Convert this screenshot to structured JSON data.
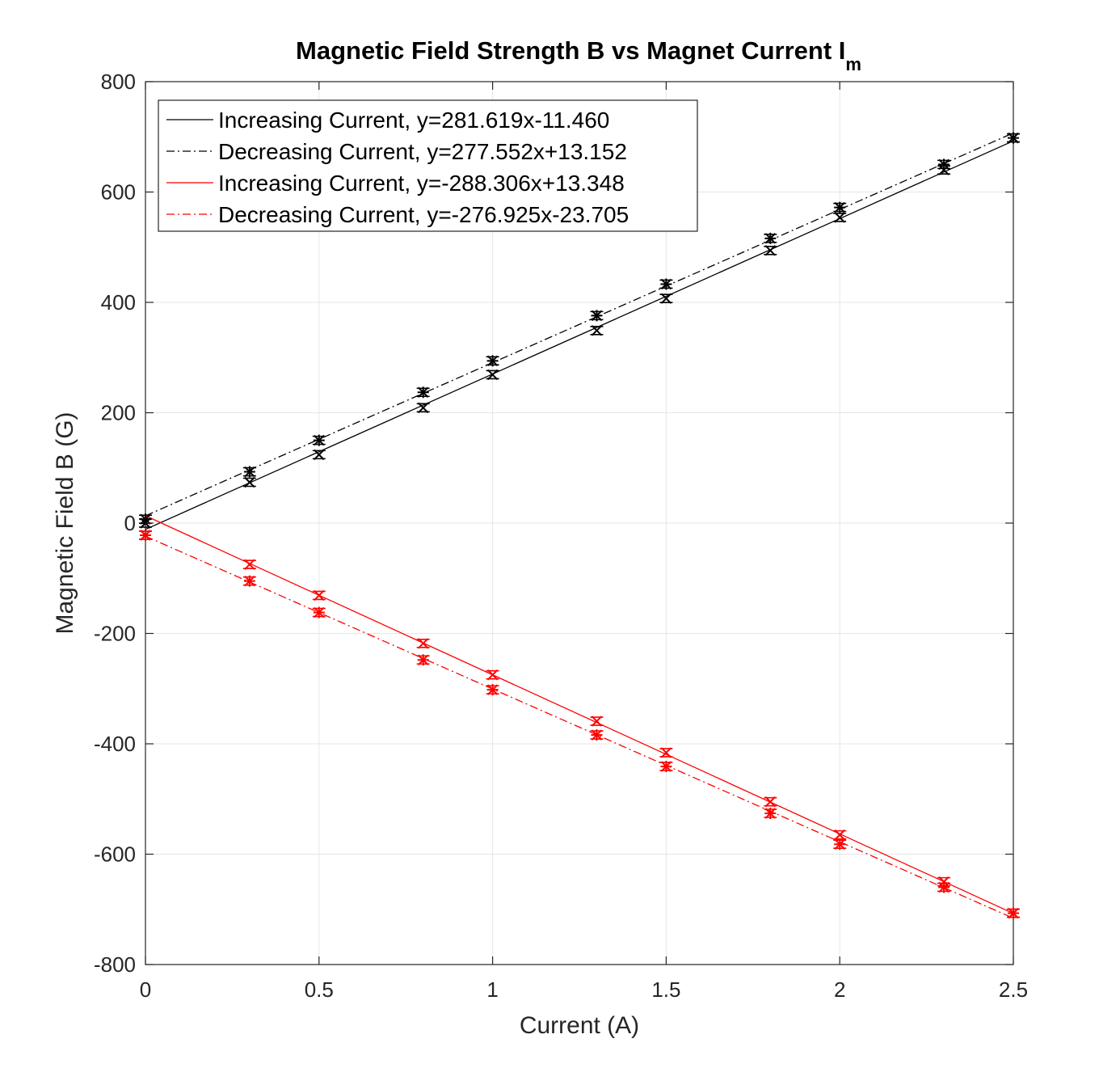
{
  "chart_data": {
    "type": "scatter",
    "title": "Magnetic Field Strength B vs Magnet Current I",
    "title_subscript": "m",
    "xlabel": "Current (A)",
    "ylabel": "Magnetic Field B (G)",
    "xlim": [
      0,
      2.5
    ],
    "ylim": [
      -800,
      800
    ],
    "xticks": [
      0,
      0.5,
      1,
      1.5,
      2,
      2.5
    ],
    "xtick_labels": [
      "0",
      "0.5",
      "1",
      "1.5",
      "2",
      "2.5"
    ],
    "yticks": [
      -800,
      -600,
      -400,
      -200,
      0,
      200,
      400,
      600,
      800
    ],
    "ytick_labels": [
      "-800",
      "-600",
      "-400",
      "-200",
      "0",
      "200",
      "400",
      "600",
      "800"
    ],
    "grid": true,
    "legend_position": "top-left",
    "x": [
      0,
      0.3,
      0.5,
      0.8,
      1.0,
      1.3,
      1.5,
      1.8,
      2.0,
      2.3,
      2.5
    ],
    "series": [
      {
        "name": "Increasing Current, y=281.619x-11.460",
        "color": "#000000",
        "line_style": "solid",
        "marker": "x",
        "fit": {
          "slope": 281.619,
          "intercept": -11.46
        },
        "values": [
          0,
          74,
          124,
          209,
          269,
          349,
          407,
          494,
          554,
          640,
          698
        ]
      },
      {
        "name": "Decreasing Current, y=277.552x+13.152",
        "color": "#000000",
        "line_style": "dashdot",
        "marker": "*",
        "fit": {
          "slope": 277.552,
          "intercept": 13.152
        },
        "values": [
          7,
          93,
          150,
          237,
          294,
          376,
          433,
          516,
          572,
          650,
          698
        ]
      },
      {
        "name": "Increasing Current, y=-288.306x+13.348",
        "color": "#ff0000",
        "line_style": "solid",
        "marker": "x",
        "fit": {
          "slope": -288.306,
          "intercept": 13.348
        },
        "values": [
          -22,
          -75,
          -131,
          -218,
          -275,
          -359,
          -416,
          -505,
          -565,
          -650,
          -707
        ]
      },
      {
        "name": "Decreasing Current, y=-276.925x-23.705",
        "color": "#ff0000",
        "line_style": "dashdot",
        "marker": "*",
        "fit": {
          "slope": -276.925,
          "intercept": -23.705
        },
        "values": [
          -22,
          -105,
          -162,
          -248,
          -302,
          -384,
          -441,
          -526,
          -582,
          -660,
          -707
        ]
      }
    ]
  }
}
